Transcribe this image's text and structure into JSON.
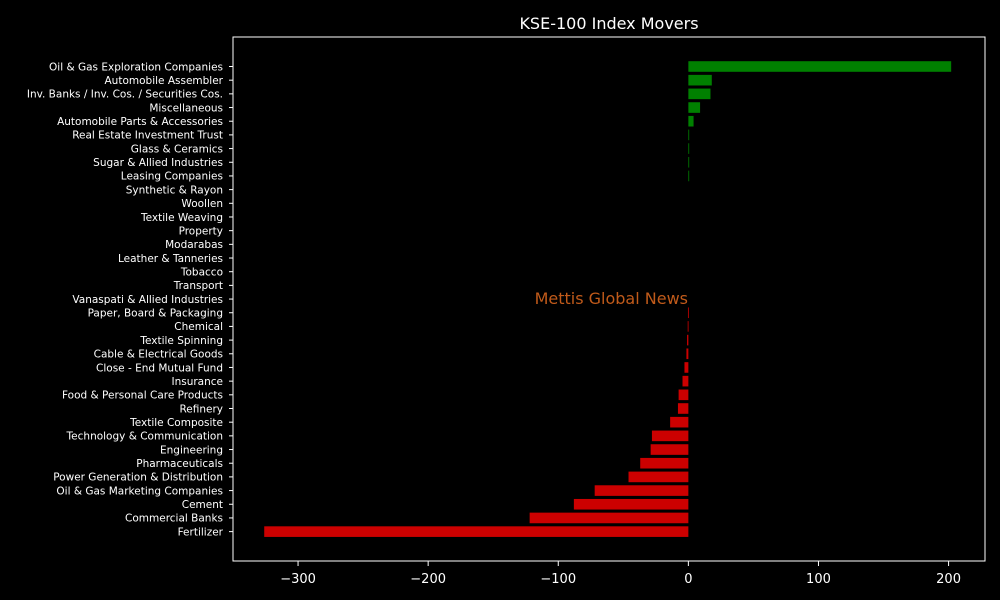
{
  "chart_data": {
    "type": "bar",
    "orientation": "horizontal",
    "title": "KSE-100 Index Movers",
    "watermark": "Mettis Global News",
    "xlabel": "",
    "ylabel": "",
    "xlim": [
      -350,
      228
    ],
    "xticks": [
      -300,
      -200,
      -100,
      0,
      100,
      200
    ],
    "xtick_labels": [
      "−300",
      "−200",
      "−100",
      "0",
      "100",
      "200"
    ],
    "grid": false,
    "positive_color": "#008000",
    "negative_color": "#cc0000",
    "watermark_color": "#c05a1a",
    "categories": [
      "Oil & Gas Exploration Companies",
      "Automobile Assembler",
      "Inv. Banks / Inv. Cos. / Securities Cos.",
      "Miscellaneous",
      "Automobile Parts & Accessories",
      "Real Estate Investment Trust",
      "Glass & Ceramics",
      "Sugar & Allied Industries",
      "Leasing Companies",
      "Synthetic & Rayon",
      "Woollen",
      "Textile Weaving",
      "Property",
      "Modarabas",
      "Leather & Tanneries",
      "Tobacco",
      "Transport",
      "Vanaspati & Allied Industries",
      "Paper, Board & Packaging",
      "Chemical",
      "Textile Spinning",
      "Cable & Electrical Goods",
      "Close - End Mutual Fund",
      "Insurance",
      "Food & Personal Care Products",
      "Refinery",
      "Textile Composite",
      "Technology & Communication",
      "Engineering",
      "Pharmaceuticals",
      "Power Generation & Distribution",
      "Oil & Gas Marketing Companies",
      "Cement",
      "Commercial Banks",
      "Fertilizer"
    ],
    "values": [
      202,
      18,
      17,
      9,
      4,
      0.6,
      0.5,
      0.4,
      0.3,
      0,
      0,
      0,
      0,
      0,
      0,
      0,
      0,
      0,
      -0.3,
      -0.5,
      -1,
      -1.5,
      -3,
      -4.5,
      -7.5,
      -8,
      -14,
      -28,
      -29,
      -37,
      -46,
      -72,
      -88,
      -122,
      -326
    ]
  }
}
